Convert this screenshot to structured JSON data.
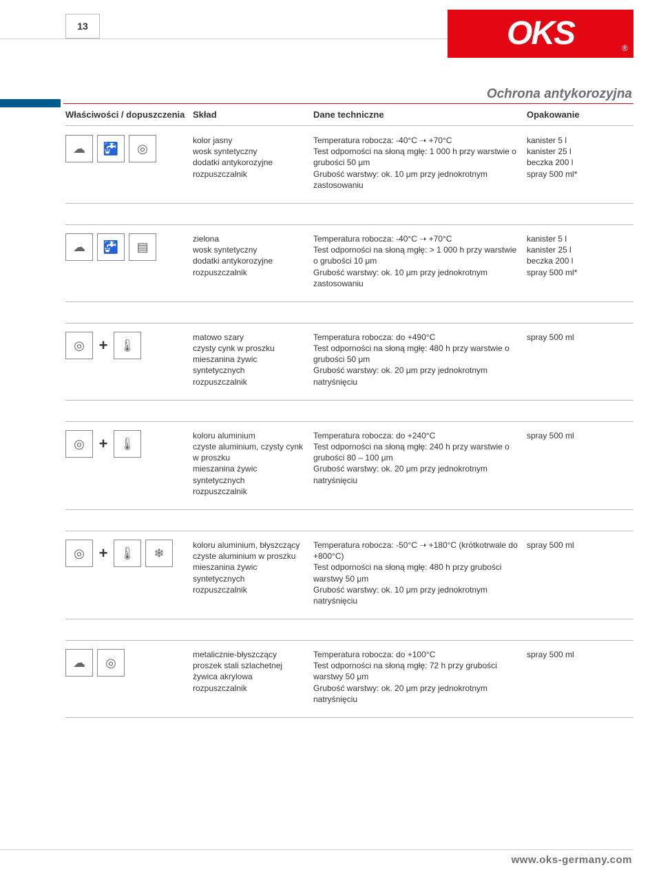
{
  "page_number": "13",
  "logo_text": "OKS",
  "logo_reg": "®",
  "section_title": "Ochrona antykorozyjna",
  "columns": {
    "c1": "Właściwości / dopuszczenia",
    "c2": "Skład",
    "c3": "Dane techniczne",
    "c4": "Opakowanie"
  },
  "rows": [
    {
      "icons": [
        "weather",
        "tap",
        "disc"
      ],
      "sklad": [
        "kolor jasny",
        "wosk syntetyczny",
        "dodatki antykorozyjne",
        "rozpuszczalnik"
      ],
      "dane": [
        "Temperatura robocza: -40°C ➝ +70°C",
        "Test odporności na słoną mgłę: 1 000 h przy warstwie o grubości 50 μm",
        "Grubość warstwy: ok. 10 μm przy jednokrotnym zastosowaniu"
      ],
      "opak": [
        "kanister 5 l",
        "kanister 25 l",
        "beczka 200 l",
        "spray 500 ml*"
      ],
      "gap": false
    },
    {
      "icons": [
        "weather",
        "tap",
        "cans"
      ],
      "sklad": [
        "zielona",
        "wosk syntetyczny",
        "dodatki antykorozyjne",
        "rozpuszczalnik"
      ],
      "dane": [
        "Temperatura robocza: -40°C ➝ +70°C",
        "Test odporności na słoną mgłę: > 1 000 h przy warstwie o grubości 10 μm",
        "Grubość warstwy: ok. 10 μm przy jednokrotnym zastosowaniu"
      ],
      "opak": [
        "kanister 5 l",
        "kanister 25 l",
        "beczka 200 l",
        "spray 500 ml*"
      ],
      "gap": true
    },
    {
      "icons": [
        "disc",
        "plus",
        "temp"
      ],
      "sklad": [
        "matowo szary",
        "czysty cynk w proszku",
        "mieszanina żywic syntetycznych",
        "rozpuszczalnik"
      ],
      "dane": [
        "Temperatura robocza: do +490°C",
        "Test odporności na słoną mgłę: 480 h przy warstwie o grubości 50 μm",
        "Grubość warstwy: ok. 20 μm przy jednokrotnym natryśnięciu"
      ],
      "opak": [
        "spray 500 ml"
      ],
      "gap": true
    },
    {
      "icons": [
        "disc",
        "plus",
        "temp"
      ],
      "sklad": [
        "koloru aluminium",
        "czyste aluminium, czysty cynk w proszku",
        "mieszanina żywic syntetycznych",
        "rozpuszczalnik"
      ],
      "dane": [
        "Temperatura robocza: do +240°C",
        "Test odporności na słoną mgłę: 240 h przy warstwie o grubości 80 – 100 μm",
        "Grubość warstwy: ok. 20 μm przy jednokrotnym natryśnięciu"
      ],
      "opak": [
        "spray 500 ml"
      ],
      "gap": true
    },
    {
      "icons": [
        "disc",
        "plus",
        "temp",
        "snow"
      ],
      "sklad": [
        "koloru aluminium, błyszczący",
        "czyste aluminium w proszku",
        "mieszanina żywic syntetycznych",
        "rozpuszczalnik"
      ],
      "dane": [
        "Temperatura robocza: -50°C ➝ +180°C (krótkotrwale do +800°C)",
        "Test odporności na słoną mgłę: 480 h przy grubości warstwy 50 μm",
        "Grubość warstwy: ok. 10 μm przy jednokrotnym natryśnięciu"
      ],
      "opak": [
        "spray 500 ml"
      ],
      "gap": true
    },
    {
      "icons": [
        "weather",
        "disc"
      ],
      "sklad": [
        "metalicznie-błyszczący",
        "proszek stali szlachetnej",
        "żywica akrylowa",
        "rozpuszczalnik"
      ],
      "dane": [
        "Temperatura robocza: do +100°C",
        "Test odporności na słoną mgłę: 72 h przy grubości warstwy 50 μm",
        "Grubość warstwy: ok. 20 μm przy jednokrotnym natryśnięciu"
      ],
      "opak": [
        "spray 500 ml"
      ],
      "gap": true
    }
  ],
  "icon_glyphs": {
    "weather": "☁",
    "tap": "🚰",
    "disc": "◎",
    "cans": "▤",
    "temp": "🌡",
    "snow": "❄",
    "plus": "+"
  },
  "footer_url": "www.oks-germany.com"
}
